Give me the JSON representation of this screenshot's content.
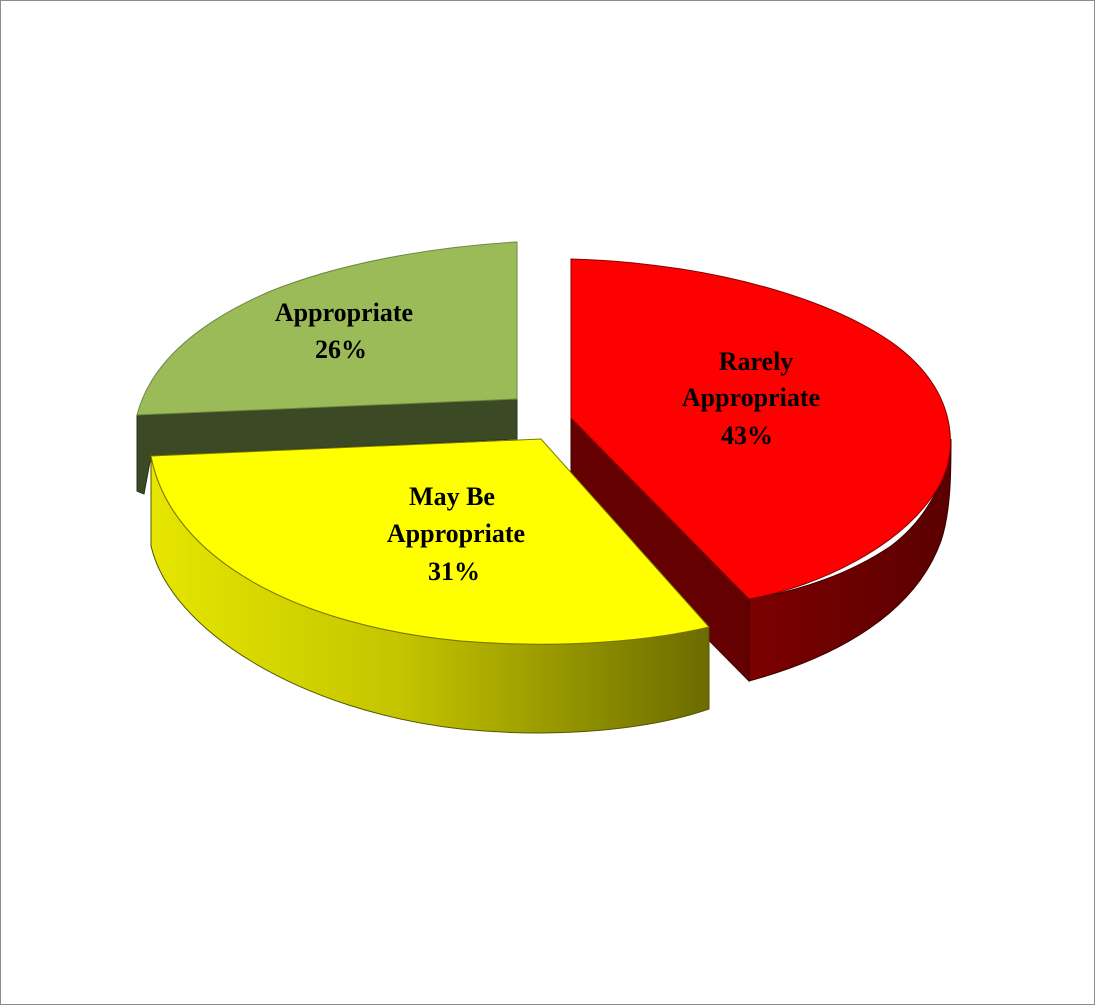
{
  "chart_data": {
    "type": "pie",
    "style": "3d-exploded",
    "title": "",
    "slices": [
      {
        "label_lines": [
          "Rarely",
          "Appropriate"
        ],
        "value": 43,
        "value_label": "43%",
        "color": "#ff0000",
        "side_color": "#640000"
      },
      {
        "label_lines": [
          "May Be",
          "Appropriate"
        ],
        "value": 31,
        "value_label": "31%",
        "color": "#ffff00",
        "side_color": "#8f8f00"
      },
      {
        "label_lines": [
          "Appropriate"
        ],
        "value": 26,
        "value_label": "26%",
        "color": "#9bbb59",
        "side_color": "#3b4a25"
      }
    ],
    "legend": "none",
    "grid": false
  }
}
